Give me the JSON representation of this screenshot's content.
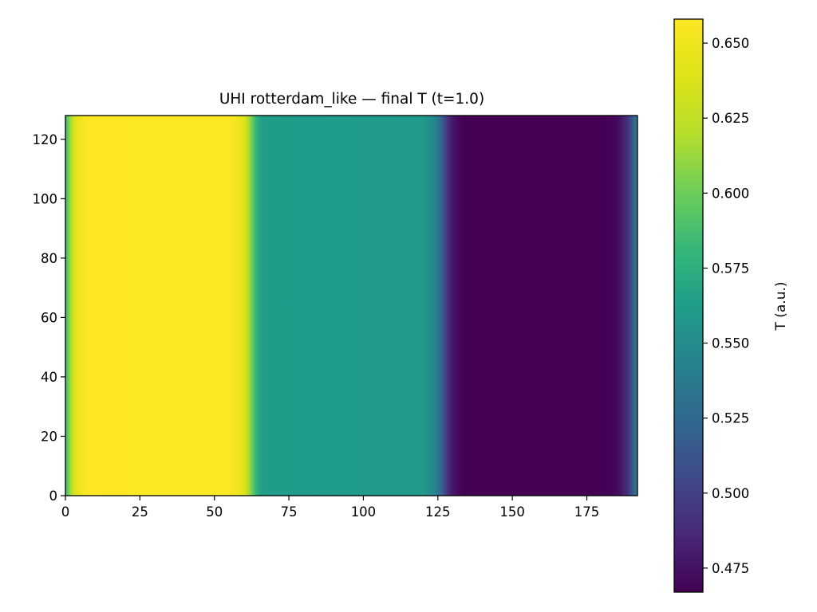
{
  "chart_data": {
    "type": "heatmap",
    "title": "UHI rotterdam_like — final T (t=1.0)",
    "xlabel": "",
    "ylabel": "",
    "x_range": [
      0,
      192
    ],
    "y_range": [
      0,
      128
    ],
    "x_ticks": [
      0,
      25,
      50,
      75,
      100,
      125,
      150,
      175
    ],
    "y_ticks": [
      0,
      20,
      40,
      60,
      80,
      100,
      120
    ],
    "colormap": "viridis",
    "colorbar": {
      "label": "T (a.u.)",
      "range": [
        0.467,
        0.658
      ],
      "ticks": [
        "0.475",
        "0.500",
        "0.525",
        "0.550",
        "0.575",
        "0.600",
        "0.625",
        "0.650"
      ]
    },
    "column_profile": {
      "description": "T varies along x only; constant along y",
      "x": [
        0,
        1,
        2,
        3,
        4,
        5,
        6,
        7,
        8,
        10,
        12,
        55,
        58,
        60,
        61,
        62,
        63,
        64,
        65,
        66,
        68,
        120,
        124,
        126,
        127,
        128,
        129,
        130,
        132,
        134,
        180,
        185,
        187,
        189,
        190,
        191,
        192
      ],
      "T": [
        0.585,
        0.6,
        0.62,
        0.635,
        0.645,
        0.65,
        0.654,
        0.656,
        0.657,
        0.658,
        0.658,
        0.657,
        0.65,
        0.64,
        0.625,
        0.61,
        0.595,
        0.58,
        0.57,
        0.563,
        0.562,
        0.56,
        0.545,
        0.525,
        0.51,
        0.495,
        0.485,
        0.478,
        0.47,
        0.467,
        0.467,
        0.47,
        0.48,
        0.495,
        0.51,
        0.525,
        0.54
      ]
    }
  }
}
